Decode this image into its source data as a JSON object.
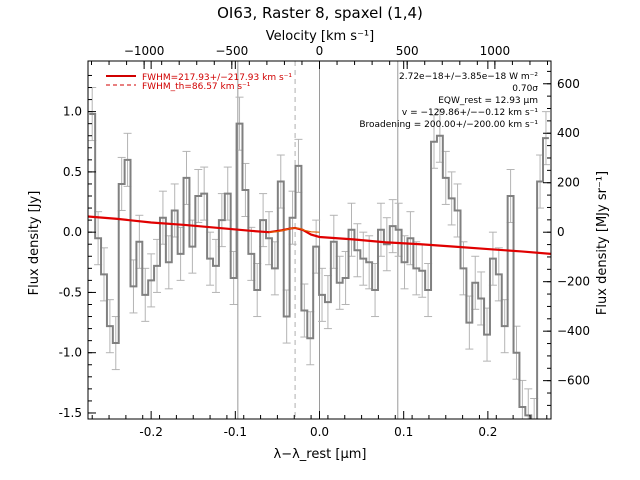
{
  "chart_data": {
    "type": "line",
    "title": "OI63, Raster 8, spaxel (1,4)",
    "xlabel": "λ−λ_rest [μm]",
    "ylabel": "Flux density [Jy]",
    "top_axis_label": "Velocity [km s⁻¹]",
    "right_axis_label": "Flux density [MJy sr⁻¹]",
    "xlim": [
      -0.275,
      0.275
    ],
    "ylim": [
      -1.55,
      1.42
    ],
    "velocity_lim": [
      -1320,
      1320
    ],
    "right_lim": [
      -755,
      692
    ],
    "x_ticks": [
      "-0.2",
      "-0.1",
      "0.0",
      "0.1",
      "0.2"
    ],
    "x_tick_values": [
      -0.2,
      -0.1,
      0.0,
      0.1,
      0.2
    ],
    "y_ticks": [
      "-1.5",
      "-1.0",
      "-0.5",
      "0.0",
      "0.5",
      "1.0"
    ],
    "y_tick_values": [
      -1.5,
      -1.0,
      -0.5,
      0.0,
      0.5,
      1.0
    ],
    "top_ticks": [
      "−1000",
      "−500",
      "0",
      "500",
      "1000"
    ],
    "top_tick_values": [
      -1000,
      -500,
      0,
      500,
      1000
    ],
    "right_ticks": [
      "−600",
      "−400",
      "−200",
      "0",
      "200",
      "400",
      "600"
    ],
    "right_tick_values": [
      -600,
      -400,
      -200,
      0,
      200,
      400,
      600
    ],
    "vertical_lines": [
      -0.097,
      0.0,
      0.093
    ],
    "dashed_line": -0.029,
    "legend": [
      {
        "label": "FWHM=217.93+/−217.93 km s⁻¹",
        "color": "#d00000",
        "style": "solid"
      },
      {
        "label": "FWHM_th=86.57 km s⁻¹",
        "color": "#d00000",
        "style": "dashed"
      }
    ],
    "annotations": [
      "2.72e−18+/−3.85e−18 W m⁻²",
      "0.70σ",
      "EQW_rest = 12.93 μm",
      "v = −129.86+/−−0.12 km s⁻¹",
      "Broadening = 200.00+/−200.00 km s⁻¹"
    ],
    "series": [
      {
        "kind": "step",
        "color": "#808080",
        "errcolor": "#b4b4b4",
        "x": [
          -0.27,
          -0.263,
          -0.256,
          -0.249,
          -0.242,
          -0.235,
          -0.228,
          -0.221,
          -0.214,
          -0.207,
          -0.2,
          -0.193,
          -0.186,
          -0.179,
          -0.172,
          -0.165,
          -0.158,
          -0.151,
          -0.144,
          -0.137,
          -0.13,
          -0.123,
          -0.116,
          -0.109,
          -0.102,
          -0.095,
          -0.088,
          -0.081,
          -0.074,
          -0.067,
          -0.06,
          -0.053,
          -0.046,
          -0.039,
          -0.032,
          -0.025,
          -0.018,
          -0.011,
          -0.004,
          0.003,
          0.01,
          0.017,
          0.024,
          0.031,
          0.038,
          0.045,
          0.052,
          0.059,
          0.066,
          0.073,
          0.08,
          0.087,
          0.094,
          0.101,
          0.108,
          0.115,
          0.122,
          0.129,
          0.136,
          0.143,
          0.15,
          0.157,
          0.164,
          0.171,
          0.178,
          0.185,
          0.192,
          0.199,
          0.206,
          0.213,
          0.22,
          0.227,
          0.234,
          0.241,
          0.248,
          0.255,
          0.262,
          0.269
        ],
        "y": [
          0.98,
          -0.05,
          -0.35,
          -0.78,
          -0.92,
          0.4,
          0.6,
          -0.45,
          -0.08,
          -0.52,
          -0.4,
          -0.28,
          0.12,
          -0.25,
          0.18,
          -0.18,
          0.45,
          -0.12,
          0.3,
          0.32,
          -0.22,
          -0.28,
          0.1,
          0.32,
          -0.38,
          0.9,
          0.35,
          -0.18,
          -0.48,
          0.1,
          -0.05,
          -0.3,
          0.42,
          -0.7,
          0.12,
          0.55,
          -0.65,
          -0.88,
          -0.12,
          -0.52,
          -0.58,
          -0.08,
          -0.42,
          -0.38,
          0.02,
          -0.15,
          -0.22,
          -0.25,
          -0.48,
          0.02,
          -0.1,
          0.05,
          0.02,
          -0.25,
          -0.05,
          -0.3,
          -0.32,
          -0.48,
          0.75,
          0.8,
          0.45,
          0.28,
          0.18,
          -0.3,
          -0.75,
          -0.42,
          -0.55,
          -0.85,
          -0.22,
          -0.35,
          -0.78,
          0.3,
          -1.0,
          -1.45,
          -1.52,
          -1.6,
          0.42,
          0.78
        ],
        "err": [
          0.22,
          0.22,
          0.22,
          0.22,
          0.22,
          0.22,
          0.22,
          0.22,
          0.22,
          0.22,
          0.22,
          0.22,
          0.22,
          0.22,
          0.22,
          0.22,
          0.22,
          0.22,
          0.22,
          0.22,
          0.22,
          0.22,
          0.22,
          0.22,
          0.22,
          0.22,
          0.22,
          0.22,
          0.22,
          0.22,
          0.22,
          0.22,
          0.22,
          0.22,
          0.22,
          0.22,
          0.22,
          0.22,
          0.22,
          0.22,
          0.22,
          0.22,
          0.22,
          0.22,
          0.22,
          0.22,
          0.22,
          0.22,
          0.22,
          0.22,
          0.22,
          0.22,
          0.22,
          0.22,
          0.22,
          0.22,
          0.22,
          0.22,
          0.22,
          0.22,
          0.22,
          0.22,
          0.22,
          0.22,
          0.22,
          0.22,
          0.22,
          0.22,
          0.22,
          0.22,
          0.22,
          0.22,
          0.22,
          0.22,
          0.22,
          0.22,
          0.22,
          0.22
        ]
      },
      {
        "kind": "fit",
        "color": "#e00000",
        "x": [
          -0.275,
          -0.24,
          -0.2,
          -0.16,
          -0.12,
          -0.08,
          -0.06,
          -0.045,
          -0.035,
          -0.029,
          -0.02,
          -0.01,
          0.0,
          0.04,
          0.08,
          0.12,
          0.16,
          0.2,
          0.24,
          0.275
        ],
        "y": [
          0.13,
          0.11,
          0.08,
          0.06,
          0.035,
          0.01,
          0.0,
          0.015,
          0.03,
          0.035,
          0.02,
          -0.02,
          -0.04,
          -0.06,
          -0.085,
          -0.1,
          -0.12,
          -0.14,
          -0.16,
          -0.18
        ]
      },
      {
        "kind": "fit-component",
        "color": "#e06000",
        "x": [
          -0.06,
          -0.05,
          -0.04,
          -0.035,
          -0.029,
          -0.023,
          -0.018,
          -0.01,
          0.0
        ],
        "y": [
          0.0,
          0.005,
          0.02,
          0.03,
          0.035,
          0.03,
          0.015,
          0.003,
          0.0
        ]
      }
    ]
  }
}
